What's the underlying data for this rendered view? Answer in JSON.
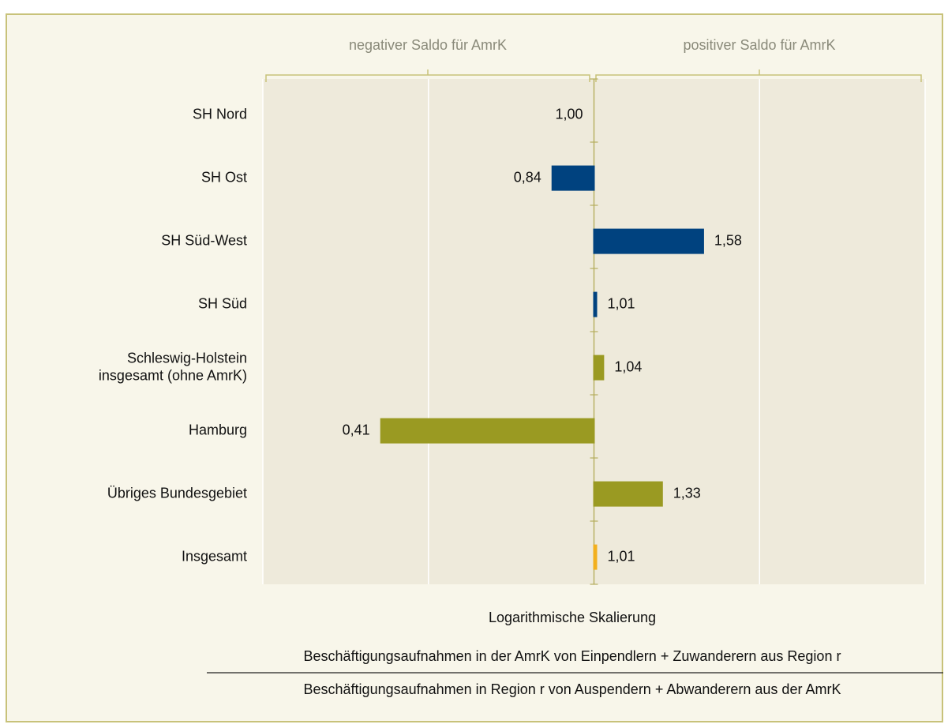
{
  "chart_data": {
    "type": "bar",
    "orientation": "horizontal",
    "log_scale": true,
    "left_note": "negativer Saldo für AmrK",
    "right_note": "positiver Saldo für AmrK",
    "categories": [
      "SH Nord",
      "SH Ost",
      "SH Süd-West",
      "SH Süd",
      "Schleswig-Holstein\ninsgesamt (ohne AmrK)",
      "Hamburg",
      "Übriges Bundesgebiet",
      "Insgesamt"
    ],
    "values": [
      1.0,
      0.84,
      1.58,
      1.01,
      1.04,
      0.41,
      1.33,
      1.01
    ],
    "value_labels": [
      "1,00",
      "0,84",
      "1,58",
      "1,01",
      "1,04",
      "0,41",
      "1,33",
      "1,01"
    ],
    "colors": [
      "#00427f",
      "#00427f",
      "#00427f",
      "#00427f",
      "#9a9a22",
      "#9a9a22",
      "#9a9a22",
      "#f2b01e"
    ],
    "xlim": [
      0.25,
      4
    ],
    "xticks": [
      0.25,
      0.5,
      1,
      2,
      4
    ],
    "grid": true,
    "scale_note": "Logarithmische Skalierung",
    "formula_numerator": "Beschäftigungsaufnahmen in der AmrK von Einpendlern + Zuwanderern aus Region r",
    "formula_denominator": "Beschäftigungsaufnahmen in Region r von Auspendern + Abwanderern aus der AmrK"
  }
}
